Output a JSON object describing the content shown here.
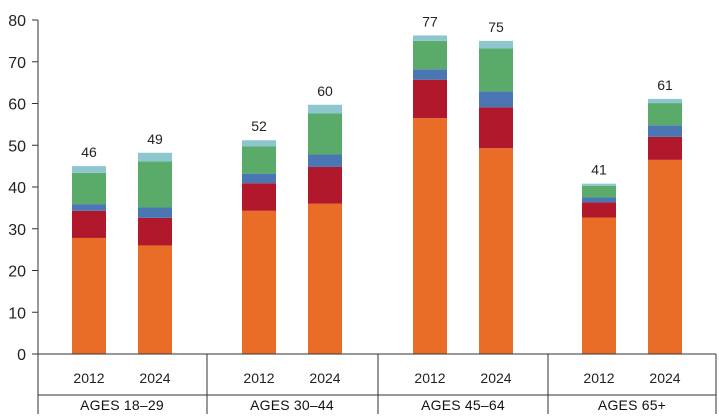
{
  "chart_data": {
    "type": "bar",
    "stacked": true,
    "ylim": [
      0,
      80
    ],
    "yticks": [
      0,
      10,
      20,
      30,
      40,
      50,
      60,
      70,
      80
    ],
    "grid": false,
    "legend": "none",
    "groups": [
      {
        "label": "AGES 18–29",
        "bars": [
          {
            "year": "2012",
            "total": "46",
            "segments": [
              27.8,
              6.5,
              1.6,
              7.5,
              1.6
            ]
          },
          {
            "year": "2024",
            "total": "49",
            "segments": [
              26.0,
              6.6,
              2.5,
              11.0,
              2.1
            ]
          }
        ]
      },
      {
        "label": "AGES 30–44",
        "bars": [
          {
            "year": "2012",
            "total": "52",
            "segments": [
              34.3,
              6.6,
              2.3,
              6.5,
              1.5
            ]
          },
          {
            "year": "2024",
            "total": "60",
            "segments": [
              36.0,
              8.8,
              3.0,
              9.8,
              2.1
            ]
          }
        ]
      },
      {
        "label": "AGES 45–64",
        "bars": [
          {
            "year": "2012",
            "total": "77",
            "segments": [
              56.5,
              9.2,
              2.5,
              6.8,
              1.3
            ]
          },
          {
            "year": "2024",
            "total": "75",
            "segments": [
              49.3,
              9.8,
              3.8,
              10.3,
              1.8
            ]
          }
        ]
      },
      {
        "label": "AGES 65+",
        "bars": [
          {
            "year": "2012",
            "total": "41",
            "segments": [
              32.7,
              3.6,
              1.2,
              2.8,
              0.5
            ]
          },
          {
            "year": "2024",
            "total": "61",
            "segments": [
              46.5,
              5.5,
              2.8,
              5.3,
              1.0
            ]
          }
        ]
      }
    ],
    "segment_colors": [
      "#ea6d27",
      "#b1182c",
      "#4a76b3",
      "#5aab6a",
      "#8ec6d0"
    ]
  }
}
